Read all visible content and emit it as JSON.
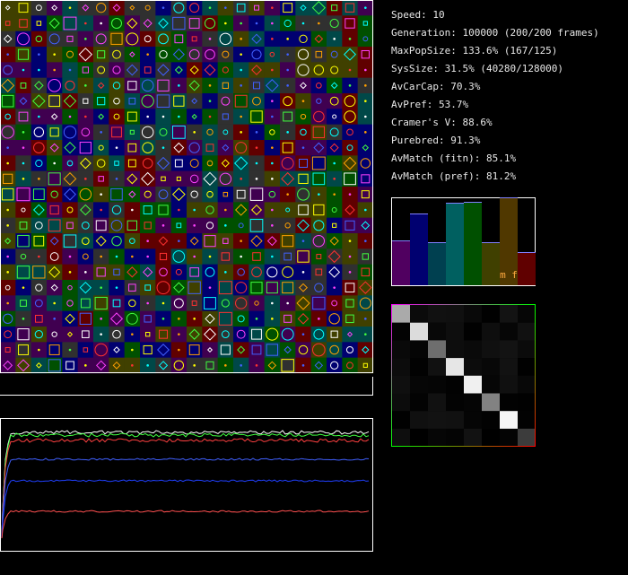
{
  "stats": [
    "Speed: 10",
    "Generation: 100000 (200/200 frames)",
    "MaxPopSize: 133.6% (167/125)",
    "SysSize: 31.5% (40280/128000)",
    "AvCarCap: 70.3%",
    "AvPref: 53.7%",
    "Cramer's V: 88.6%",
    "Purebred: 91.3%",
    "AvMatch (fitn): 85.1%",
    "AvMatch (pref): 81.2%"
  ],
  "bar_panel_label": "m f"
}
